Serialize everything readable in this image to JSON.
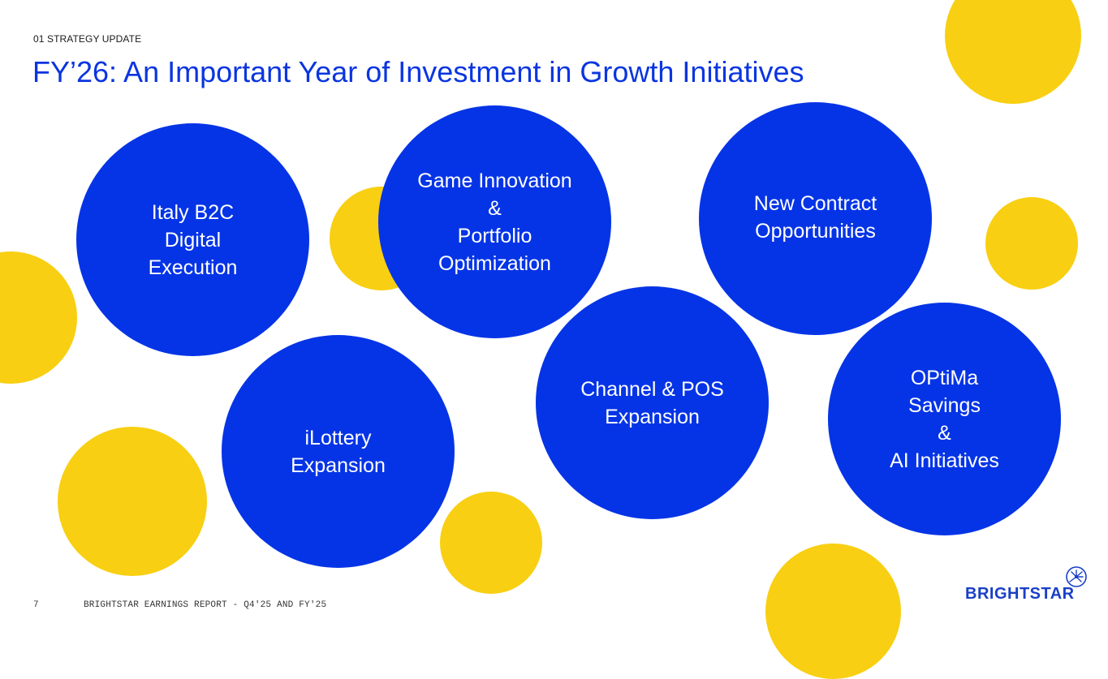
{
  "header": {
    "section_label": "01 STRATEGY UPDATE",
    "title": "FY’26: An Important Year of Investment in Growth Initiatives"
  },
  "initiatives": [
    {
      "lines": [
        "Italy B2C",
        "Digital",
        "Execution"
      ]
    },
    {
      "lines": [
        "Game Innovation",
        "&",
        "Portfolio",
        "Optimization"
      ]
    },
    {
      "lines": [
        "New Contract",
        "Opportunities"
      ]
    },
    {
      "lines": [
        "iLottery",
        "Expansion"
      ]
    },
    {
      "lines": [
        "Channel & POS",
        "Expansion"
      ]
    },
    {
      "lines": [
        "OPtiMa",
        "Savings",
        "&",
        "AI Initiatives"
      ]
    }
  ],
  "footer": {
    "page_number": "7",
    "report_name": "BRIGHTSTAR EARNINGS REPORT - Q4'25 AND FY'25"
  },
  "logo": {
    "text": "BRIGHTSTAR",
    "icon": "star-burst-icon"
  },
  "colors": {
    "title_blue": "#0a35e0",
    "bubble_blue": "#0534e6",
    "accent_yellow": "#f8cf12",
    "logo_blue": "#1a3fc7"
  }
}
